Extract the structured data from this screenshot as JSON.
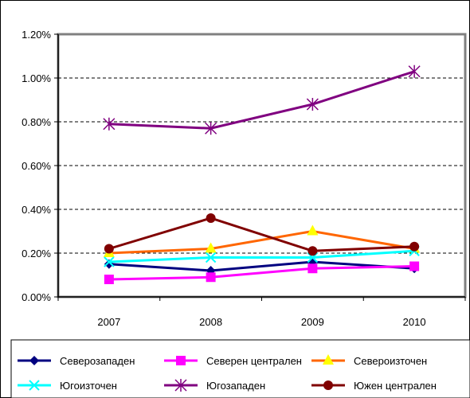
{
  "chart_data": {
    "type": "line",
    "title": "",
    "xlabel": "",
    "ylabel": "",
    "categories": [
      "2007",
      "2008",
      "2009",
      "2010"
    ],
    "ylim": [
      0,
      1.2
    ],
    "yticks": [
      "0.00%",
      "0.20%",
      "0.40%",
      "0.60%",
      "0.80%",
      "1.00%",
      "1.20%"
    ],
    "grid": "horizontal dashed",
    "legend_position": "bottom",
    "series": [
      {
        "name": "Северозападен",
        "values": [
          0.15,
          0.12,
          0.16,
          0.13
        ],
        "color": "#000080",
        "marker": "diamond"
      },
      {
        "name": "Северен централен",
        "values": [
          0.08,
          0.09,
          0.13,
          0.14
        ],
        "color": "#ff00ff",
        "marker": "square"
      },
      {
        "name": "Североизточен",
        "values": [
          0.2,
          0.22,
          0.3,
          0.22
        ],
        "color": "#ff6600",
        "marker": "triangle"
      },
      {
        "name": "Югоизточен",
        "values": [
          0.16,
          0.18,
          0.18,
          0.21
        ],
        "color": "#00ffff",
        "marker": "x"
      },
      {
        "name": "Югозападен",
        "values": [
          0.79,
          0.77,
          0.88,
          1.03
        ],
        "color": "#800080",
        "marker": "asterisk"
      },
      {
        "name": "Южен централен",
        "values": [
          0.22,
          0.36,
          0.21,
          0.23
        ],
        "color": "#800000",
        "marker": "circle"
      }
    ]
  }
}
